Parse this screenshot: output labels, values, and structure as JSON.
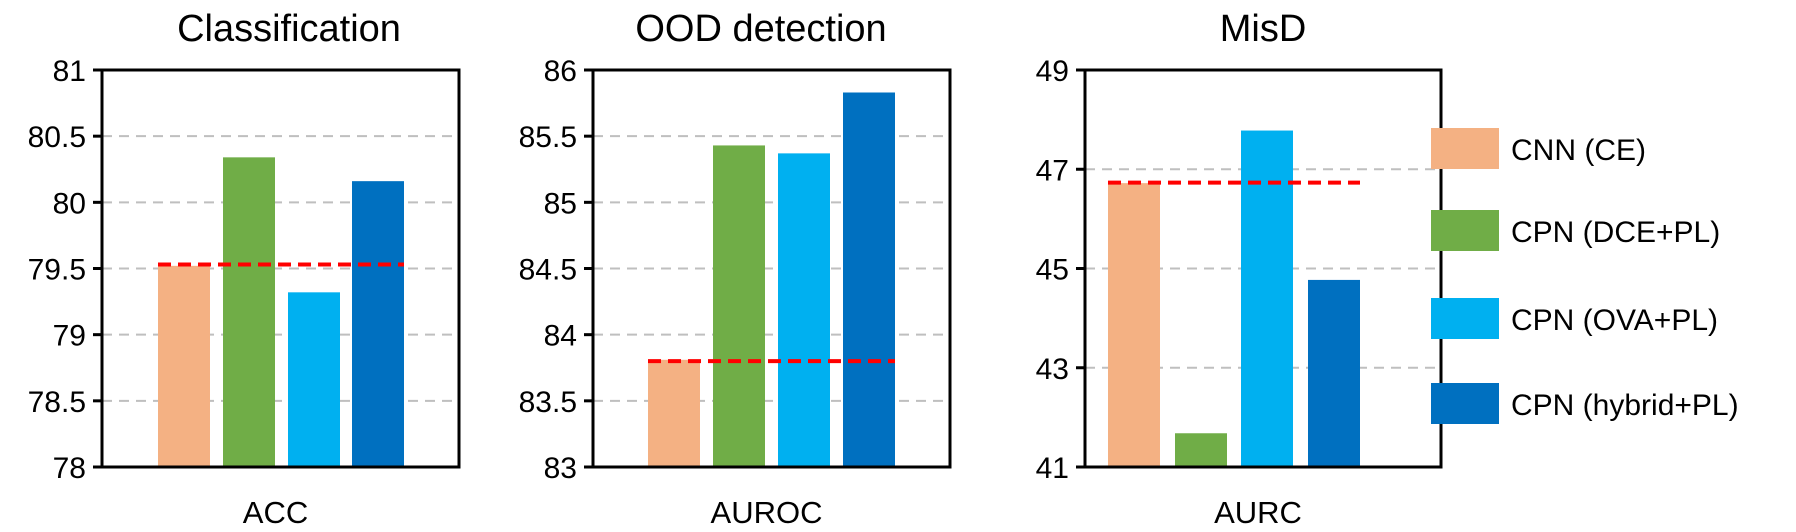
{
  "legend": {
    "items": [
      {
        "label": "CNN (CE)",
        "color": "#F4B183"
      },
      {
        "label": "CPN (DCE+PL)",
        "color": "#70AD47"
      },
      {
        "label": "CPN (OVA+PL)",
        "color": "#00B0F0"
      },
      {
        "label": "CPN (hybrid+PL)",
        "color": "#0070C0"
      }
    ]
  },
  "reference_line_color": "#FF0000",
  "chart_data": [
    {
      "type": "bar",
      "title": "Classification",
      "xlabel": "ACC",
      "ylabel": "",
      "ylim": [
        78,
        81
      ],
      "yticks": [
        78,
        78.5,
        79,
        79.5,
        80,
        80.5,
        81
      ],
      "ytick_labels": [
        "78",
        "78.5",
        "79",
        "79.5",
        "80",
        "80.5",
        "81"
      ],
      "grid": "horizontal dashed",
      "series": [
        {
          "name": "CNN (CE)",
          "value": 79.52
        },
        {
          "name": "CPN (DCE+PL)",
          "value": 80.34
        },
        {
          "name": "CPN (OVA+PL)",
          "value": 79.32
        },
        {
          "name": "CPN (hybrid+PL)",
          "value": 80.16
        }
      ],
      "reference_line": 79.53
    },
    {
      "type": "bar",
      "title": "OOD detection",
      "xlabel": "AUROC",
      "ylabel": "",
      "ylim": [
        83,
        86
      ],
      "yticks": [
        83,
        83.5,
        84,
        84.5,
        85,
        85.5,
        86
      ],
      "ytick_labels": [
        "83",
        "83.5",
        "84",
        "84.5",
        "85",
        "85.5",
        "86"
      ],
      "grid": "horizontal dashed",
      "series": [
        {
          "name": "CNN (CE)",
          "value": 83.81
        },
        {
          "name": "CPN (DCE+PL)",
          "value": 85.43
        },
        {
          "name": "CPN (OVA+PL)",
          "value": 85.37
        },
        {
          "name": "CPN (hybrid+PL)",
          "value": 85.83
        }
      ],
      "reference_line": 83.8
    },
    {
      "type": "bar",
      "title": "MisD",
      "xlabel": "AURC",
      "ylabel": "",
      "ylim": [
        41,
        49
      ],
      "yticks": [
        41,
        43,
        45,
        47,
        49
      ],
      "ytick_labels": [
        "41",
        "43",
        "45",
        "47",
        "49"
      ],
      "grid": "horizontal dashed",
      "series": [
        {
          "name": "CNN (CE)",
          "value": 46.72
        },
        {
          "name": "CPN (DCE+PL)",
          "value": 41.68
        },
        {
          "name": "CPN (OVA+PL)",
          "value": 47.78
        },
        {
          "name": "CPN (hybrid+PL)",
          "value": 44.77
        }
      ],
      "reference_line": 46.73
    }
  ]
}
